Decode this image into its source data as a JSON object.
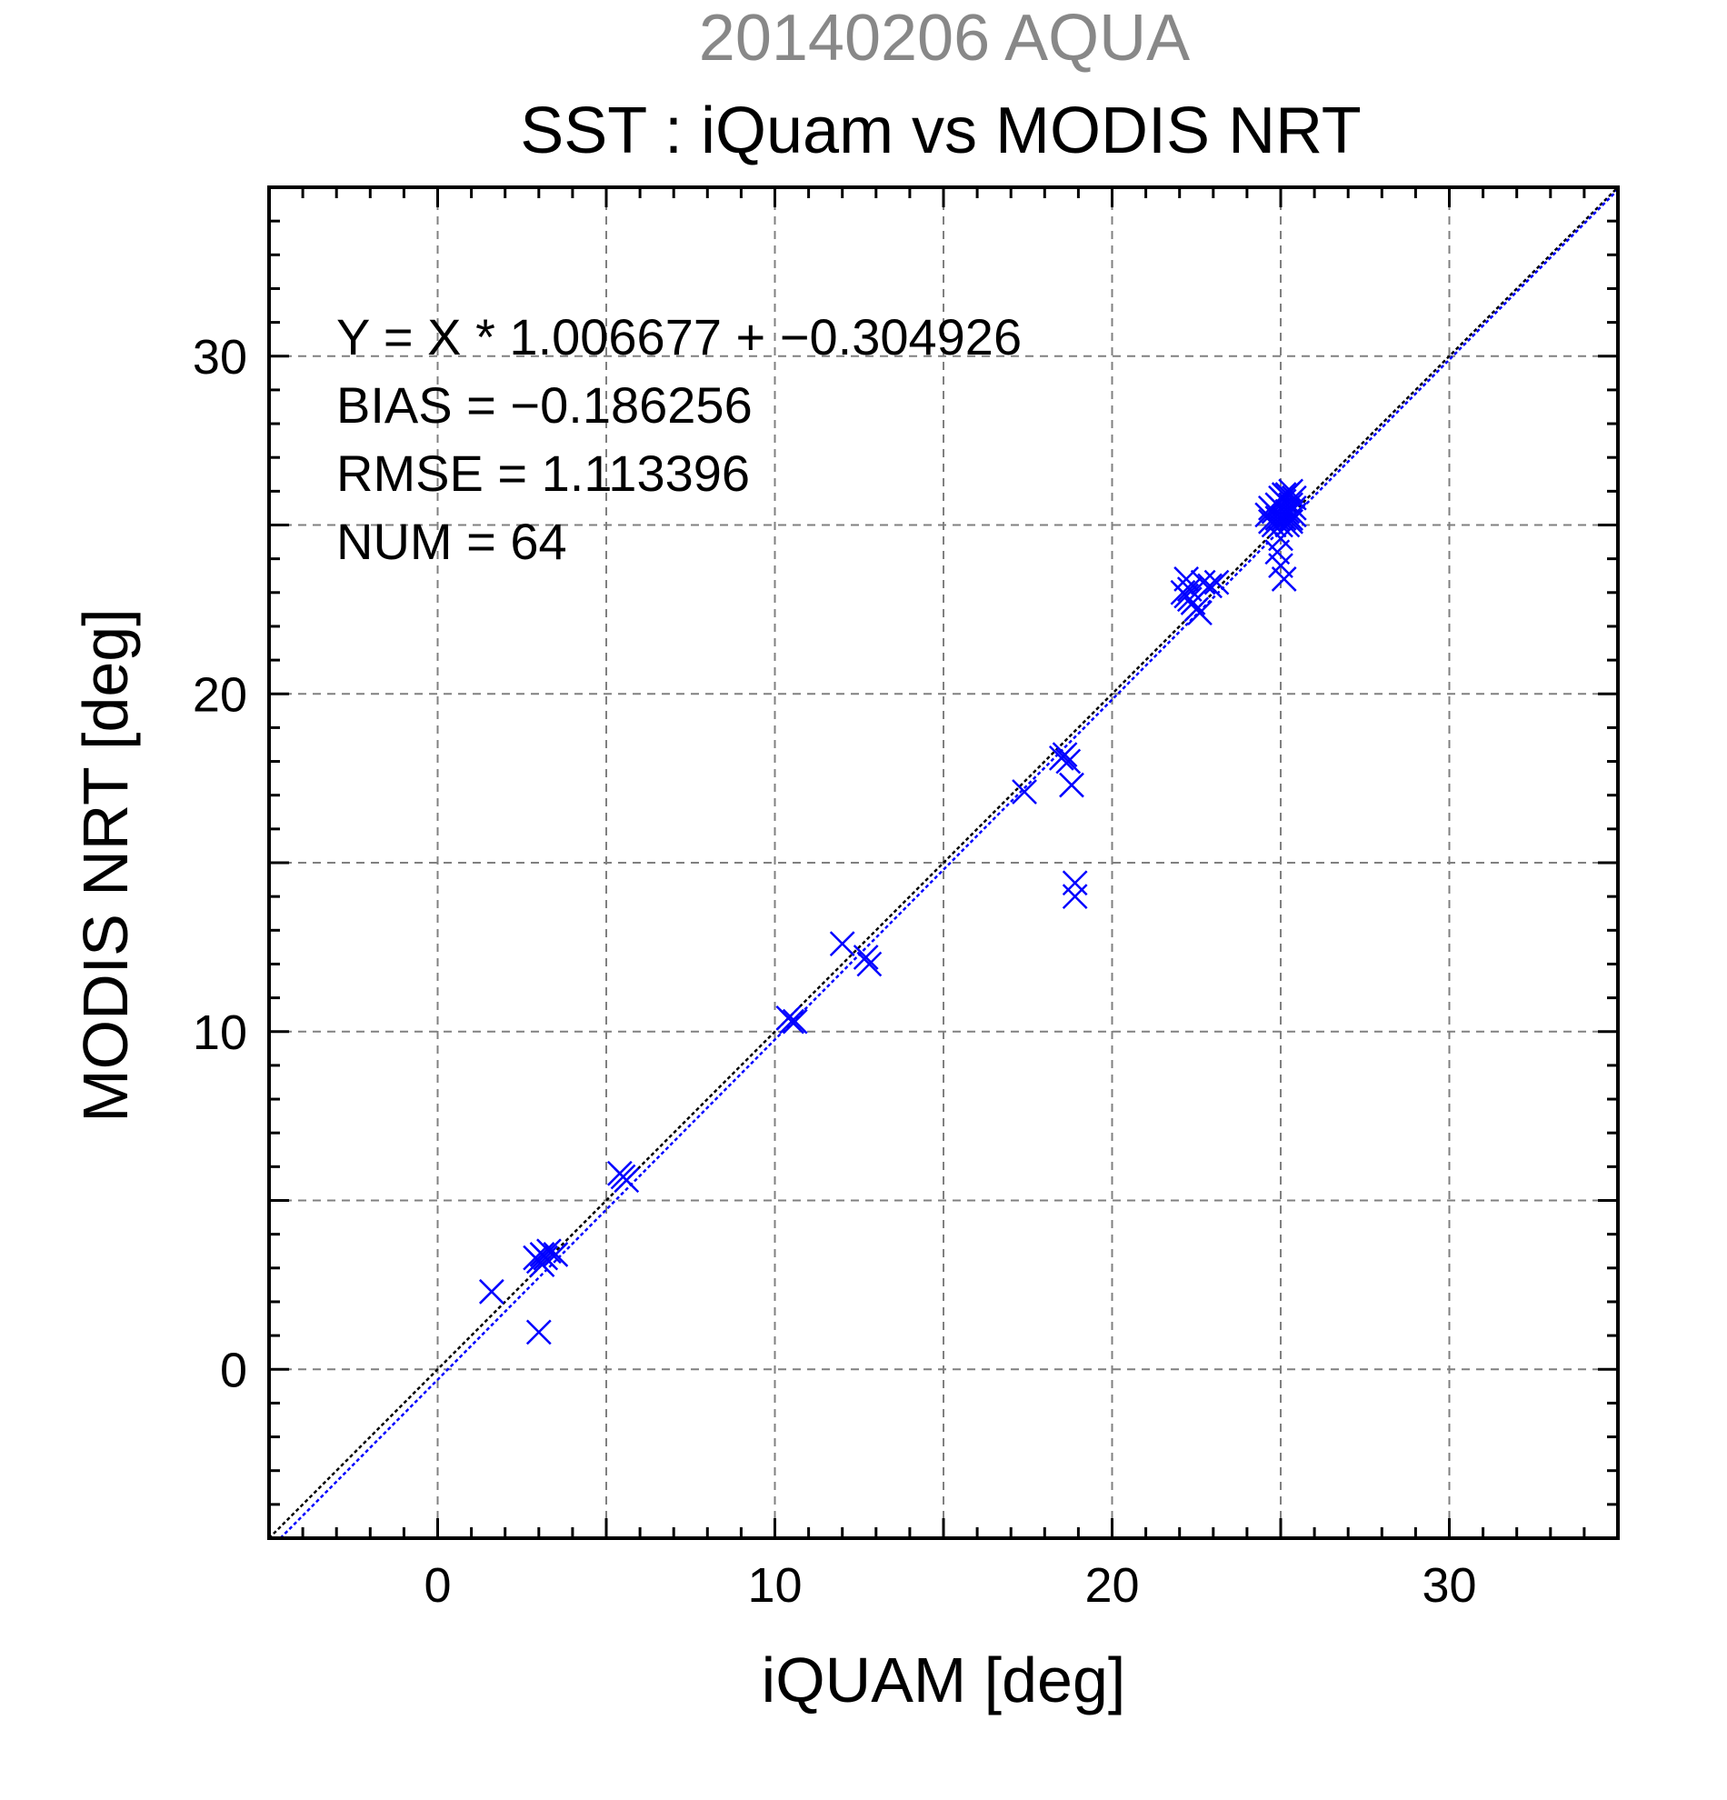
{
  "chart_data": {
    "type": "scatter",
    "title_top": "20140206 AQUA",
    "title": "SST : iQuam vs MODIS NRT",
    "xlabel": "iQUAM [deg]",
    "ylabel": "MODIS NRT [deg]",
    "xlim": [
      -5,
      35
    ],
    "ylim": [
      -5,
      35
    ],
    "xticks": [
      0,
      10,
      20,
      30
    ],
    "yticks": [
      0,
      10,
      20,
      30
    ],
    "xtick_labels": [
      "0",
      "10",
      "20",
      "30"
    ],
    "ytick_labels": [
      "0",
      "10",
      "20",
      "30"
    ],
    "grid": true,
    "stats": [
      "Y = X * 1.006677 + −0.304926",
      "BIAS = −0.186256",
      "RMSE = 1.113396",
      "NUM = 64"
    ],
    "lines": [
      {
        "kind": "one-to-one",
        "slope": 1.0,
        "intercept": 0.0,
        "color": "#000000",
        "style": "dotted"
      },
      {
        "kind": "regression",
        "slope": 1.006677,
        "intercept": -0.304926,
        "color": "#0000ff",
        "style": "dotted"
      }
    ],
    "marker_color": "#0000ff",
    "marker": "x",
    "points": [
      {
        "x": 1.6,
        "y": 2.3
      },
      {
        "x": 3.0,
        "y": 1.1
      },
      {
        "x": 2.9,
        "y": 3.3
      },
      {
        "x": 3.0,
        "y": 3.2
      },
      {
        "x": 3.1,
        "y": 3.4
      },
      {
        "x": 3.2,
        "y": 3.3
      },
      {
        "x": 3.3,
        "y": 3.5
      },
      {
        "x": 3.5,
        "y": 3.4
      },
      {
        "x": 3.1,
        "y": 3.1
      },
      {
        "x": 5.4,
        "y": 5.8
      },
      {
        "x": 5.6,
        "y": 5.6
      },
      {
        "x": 5.5,
        "y": 5.7
      },
      {
        "x": 10.4,
        "y": 10.4
      },
      {
        "x": 10.5,
        "y": 10.3
      },
      {
        "x": 10.6,
        "y": 10.3
      },
      {
        "x": 12.0,
        "y": 12.6
      },
      {
        "x": 12.7,
        "y": 12.2
      },
      {
        "x": 12.8,
        "y": 12.0
      },
      {
        "x": 17.4,
        "y": 17.1
      },
      {
        "x": 18.5,
        "y": 18.1
      },
      {
        "x": 18.7,
        "y": 18.0
      },
      {
        "x": 18.6,
        "y": 18.2
      },
      {
        "x": 18.8,
        "y": 17.3
      },
      {
        "x": 18.9,
        "y": 14.4
      },
      {
        "x": 18.9,
        "y": 14.0
      },
      {
        "x": 22.1,
        "y": 23.0
      },
      {
        "x": 22.2,
        "y": 23.4
      },
      {
        "x": 22.3,
        "y": 22.8
      },
      {
        "x": 22.4,
        "y": 22.7
      },
      {
        "x": 22.5,
        "y": 22.5
      },
      {
        "x": 22.6,
        "y": 22.4
      },
      {
        "x": 22.2,
        "y": 22.9
      },
      {
        "x": 22.7,
        "y": 23.3
      },
      {
        "x": 22.9,
        "y": 23.2
      },
      {
        "x": 23.1,
        "y": 23.3
      },
      {
        "x": 22.3,
        "y": 23.1
      },
      {
        "x": 24.6,
        "y": 25.3
      },
      {
        "x": 24.7,
        "y": 25.1
      },
      {
        "x": 24.8,
        "y": 25.4
      },
      {
        "x": 24.9,
        "y": 25.2
      },
      {
        "x": 25.0,
        "y": 25.0
      },
      {
        "x": 25.0,
        "y": 25.5
      },
      {
        "x": 25.1,
        "y": 25.7
      },
      {
        "x": 25.2,
        "y": 25.9
      },
      {
        "x": 25.3,
        "y": 25.6
      },
      {
        "x": 25.2,
        "y": 25.3
      },
      {
        "x": 25.4,
        "y": 25.8
      },
      {
        "x": 25.1,
        "y": 25.9
      },
      {
        "x": 25.3,
        "y": 25.1
      },
      {
        "x": 25.0,
        "y": 25.8
      },
      {
        "x": 24.9,
        "y": 25.6
      },
      {
        "x": 25.2,
        "y": 25.4
      },
      {
        "x": 25.4,
        "y": 25.5
      },
      {
        "x": 25.3,
        "y": 26.0
      },
      {
        "x": 24.8,
        "y": 25.0
      },
      {
        "x": 25.1,
        "y": 25.2
      },
      {
        "x": 25.0,
        "y": 24.6
      },
      {
        "x": 24.9,
        "y": 24.2
      },
      {
        "x": 25.0,
        "y": 23.8
      },
      {
        "x": 25.1,
        "y": 23.4
      },
      {
        "x": 25.2,
        "y": 25.0
      },
      {
        "x": 24.7,
        "y": 25.5
      },
      {
        "x": 25.3,
        "y": 25.2
      },
      {
        "x": 25.4,
        "y": 25.3
      }
    ]
  }
}
